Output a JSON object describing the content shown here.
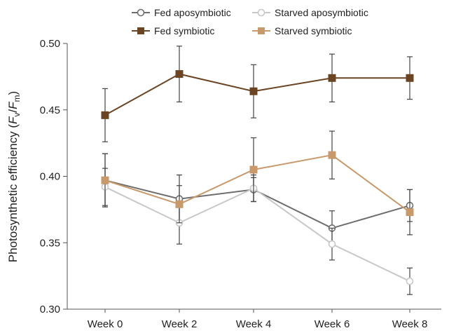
{
  "chart_data": {
    "type": "line",
    "categories": [
      "Week 0",
      "Week 2",
      "Week 4",
      "Week 6",
      "Week 8"
    ],
    "ylabel": {
      "prefix": "Photosynthetic efficiency (",
      "v_main": "F",
      "v_sub": "v",
      "sep": "/",
      "m_main": "F",
      "m_sub": "m",
      "suffix": ")"
    },
    "ylim": [
      0.3,
      0.5
    ],
    "yticks": [
      "0.30",
      "0.35",
      "0.40",
      "0.45",
      "0.50"
    ],
    "grid": false,
    "legend_position": "top",
    "series": [
      {
        "name": "Fed aposymbiotic",
        "color": "#6e6e6e",
        "marker": "circle-open",
        "values": [
          0.397,
          0.383,
          0.39,
          0.361,
          0.378
        ],
        "error": [
          0.02,
          0.018,
          0.009,
          0.013,
          0.012
        ]
      },
      {
        "name": "Starved aposymbiotic",
        "color": "#c8c8c8",
        "marker": "circle-open",
        "values": [
          0.392,
          0.365,
          0.391,
          0.349,
          0.321
        ],
        "error": [
          0.014,
          0.016,
          0.01,
          0.012,
          0.01
        ]
      },
      {
        "name": "Fed symbiotic",
        "color": "#6b4423",
        "marker": "square",
        "values": [
          0.446,
          0.477,
          0.464,
          0.474,
          0.474
        ],
        "error": [
          0.02,
          0.021,
          0.02,
          0.018,
          0.016
        ]
      },
      {
        "name": "Starved symbiotic",
        "color": "#c8996a",
        "marker": "square",
        "values": [
          0.397,
          0.379,
          0.405,
          0.416,
          0.373
        ],
        "error": [
          0.02,
          0.014,
          0.024,
          0.018,
          0.017
        ]
      }
    ]
  }
}
